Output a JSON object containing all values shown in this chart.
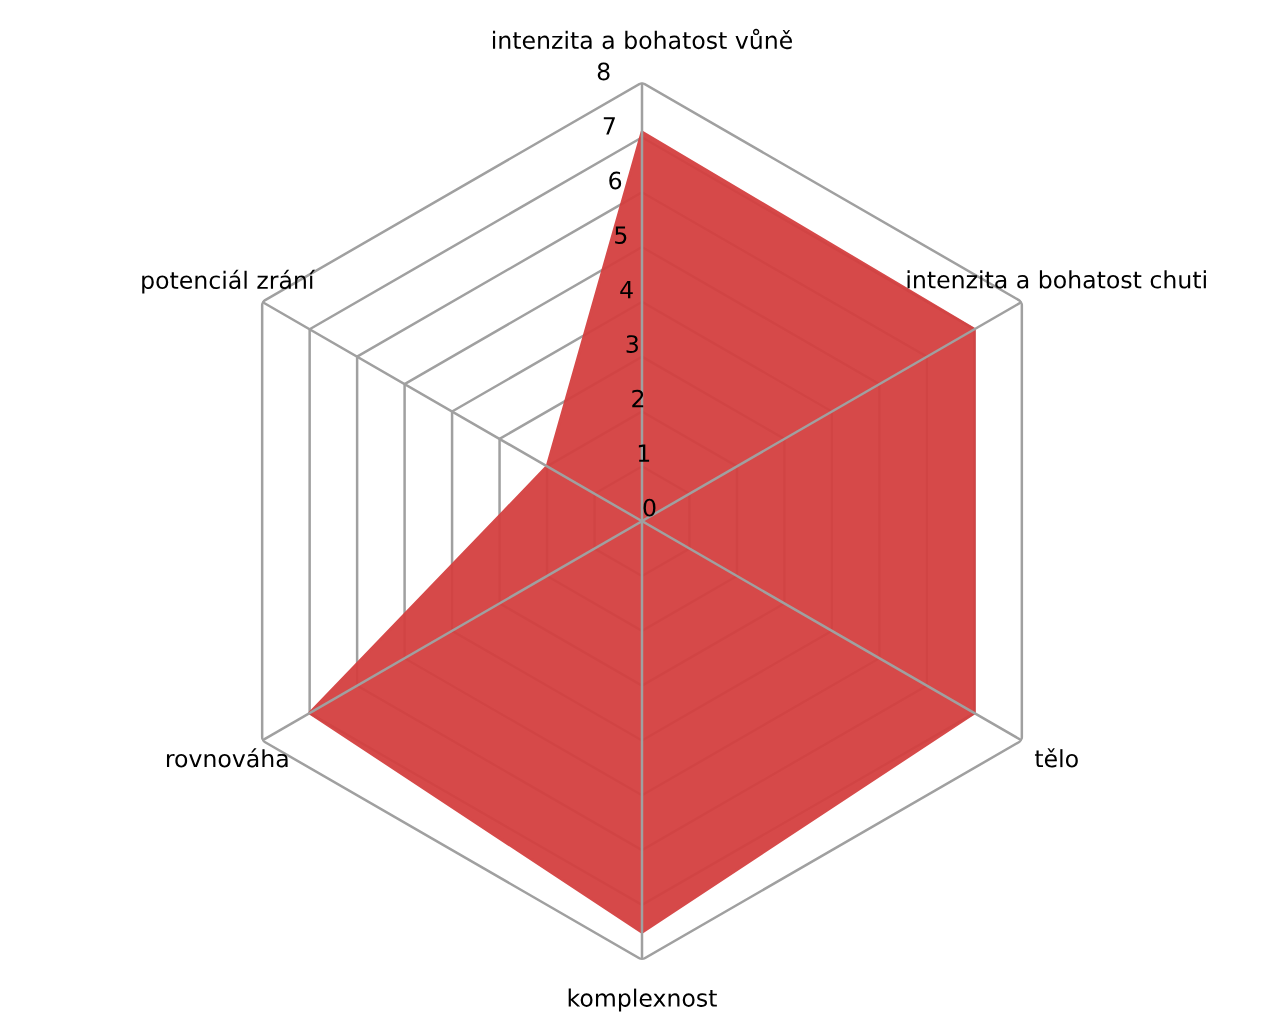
{
  "chart_data": {
    "type": "radar",
    "categories": [
      "intenzita a bohatost vůně",
      "intenzita a bohatost chuti",
      "tělo",
      "komplexnost",
      "rovnováha",
      "potenciál zrání"
    ],
    "series": [
      {
        "color": "#d44040",
        "values": [
          7.1,
          7,
          7,
          7.5,
          7,
          2
        ]
      }
    ],
    "ylim": [
      0,
      8
    ],
    "yticks": [
      0,
      1,
      2,
      3,
      4,
      5,
      6,
      7,
      8
    ],
    "grid": true,
    "legend": false
  }
}
